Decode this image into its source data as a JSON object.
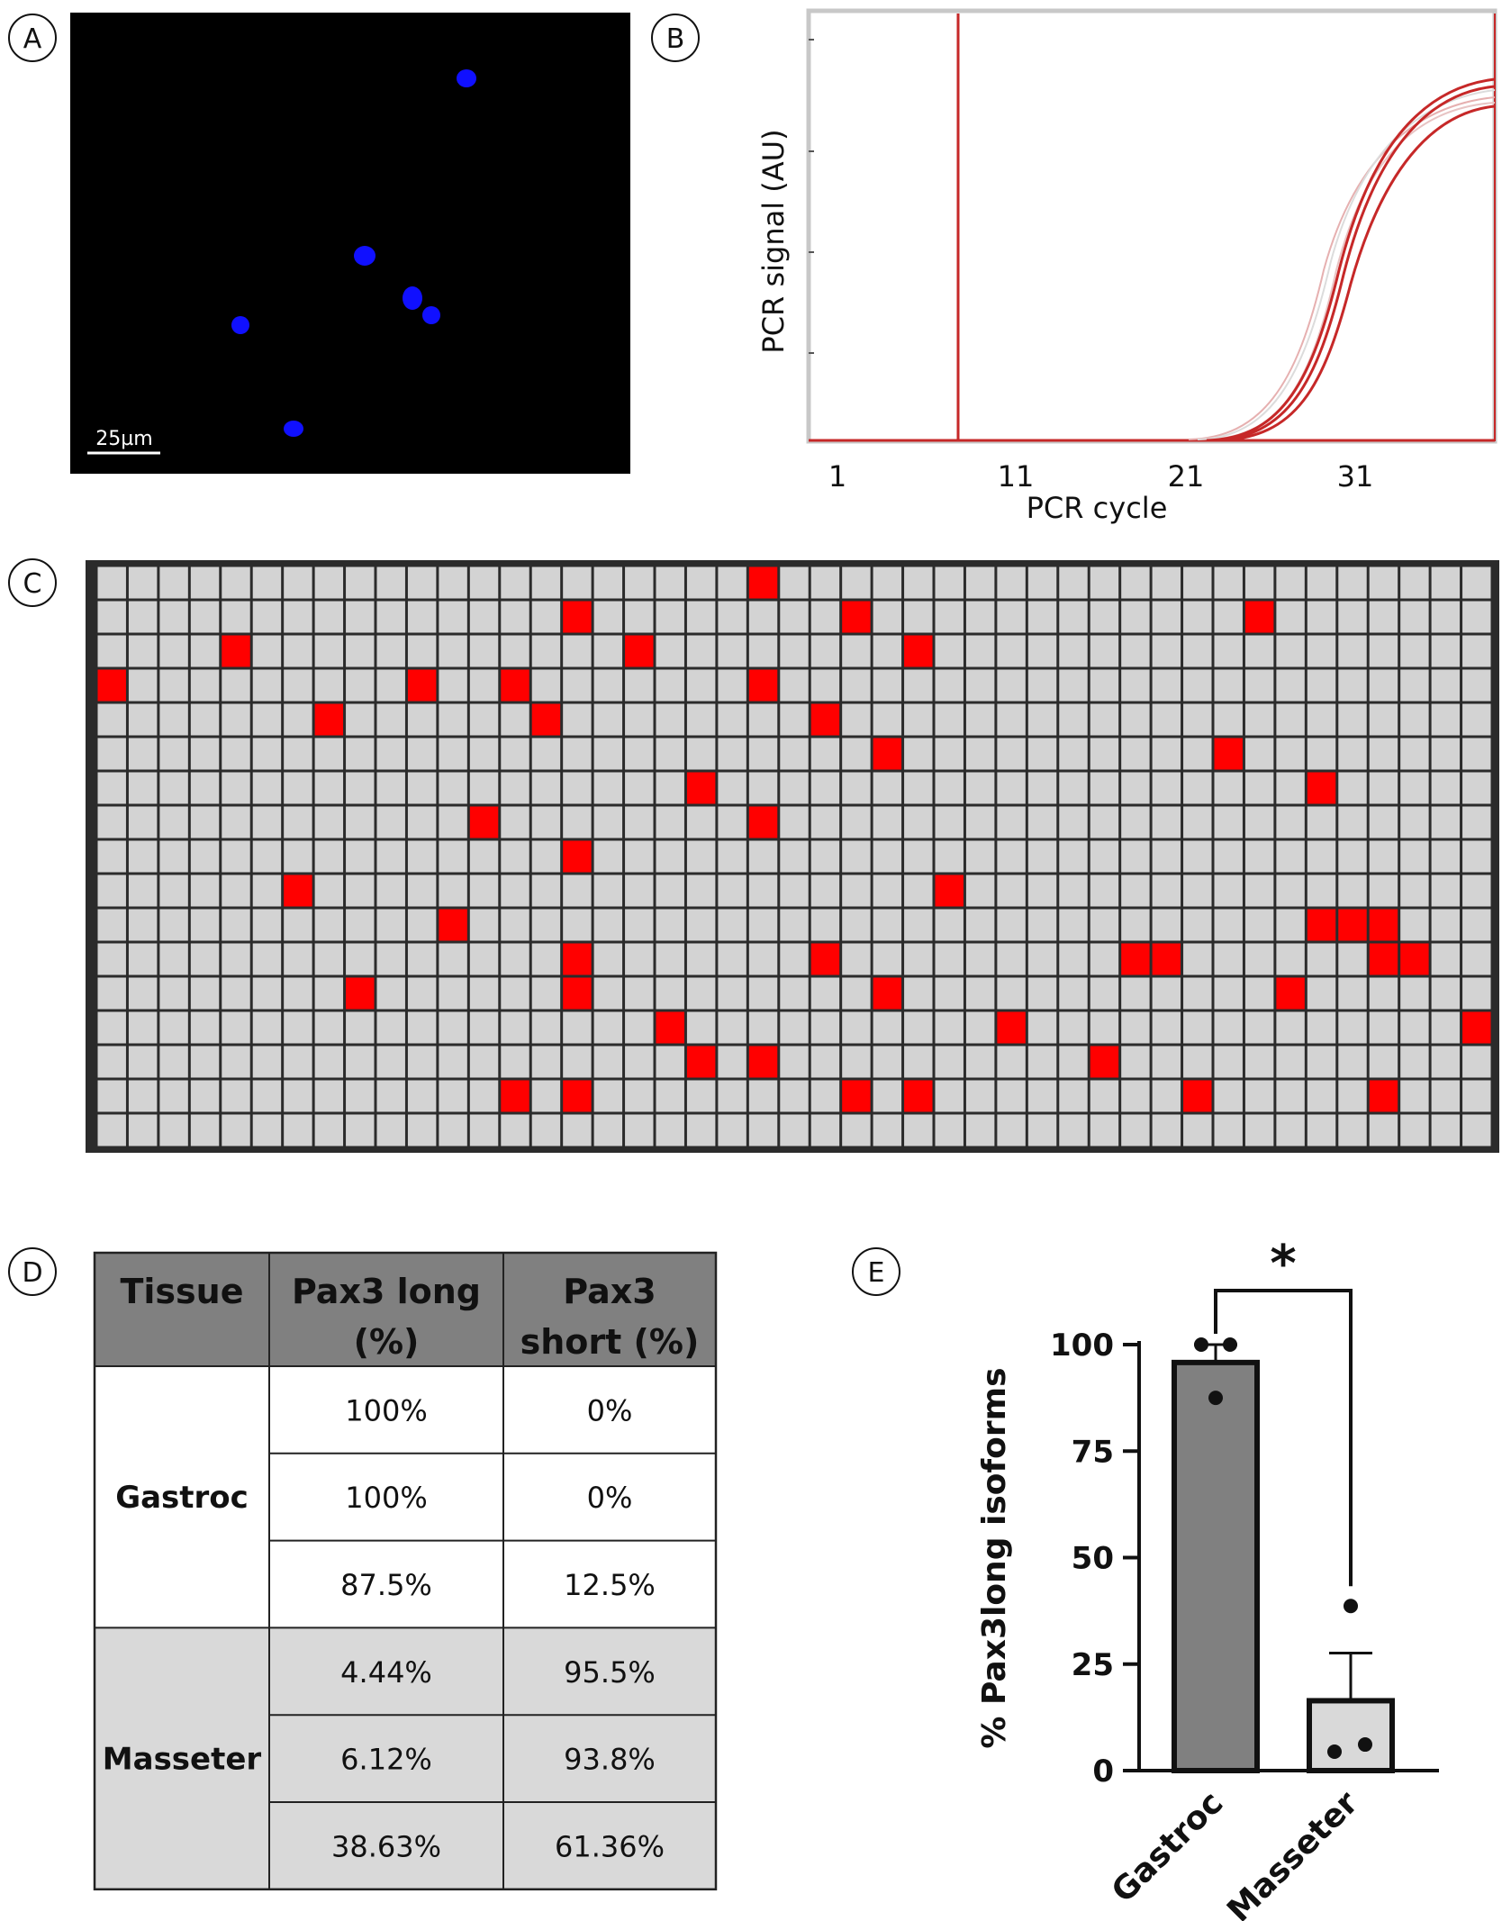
{
  "panels": {
    "A": "A",
    "B": "B",
    "C": "C",
    "D": "D",
    "E": "E"
  },
  "panel_a": {
    "scale_label": "25µm",
    "background": "#000000",
    "nucleus_color": "#1010ff"
  },
  "panel_b": {
    "ylabel": "PCR signal (AU)",
    "xlabel": "PCR cycle",
    "xticks": [
      "1",
      "11",
      "21",
      "31"
    ],
    "line_color": "#c62828"
  },
  "panel_c": {
    "rows": 17,
    "cols": 45,
    "well_color": "#d3d3d3",
    "positive_color": "#ff0000",
    "positive_wells": [
      [
        0,
        21
      ],
      [
        1,
        15
      ],
      [
        1,
        24
      ],
      [
        1,
        37
      ],
      [
        2,
        4
      ],
      [
        2,
        17
      ],
      [
        2,
        26
      ],
      [
        3,
        0
      ],
      [
        3,
        10
      ],
      [
        3,
        13
      ],
      [
        3,
        21
      ],
      [
        4,
        7
      ],
      [
        4,
        14
      ],
      [
        4,
        23
      ],
      [
        5,
        25
      ],
      [
        5,
        36
      ],
      [
        6,
        19
      ],
      [
        6,
        39
      ],
      [
        7,
        12
      ],
      [
        7,
        21
      ],
      [
        8,
        15
      ],
      [
        9,
        6
      ],
      [
        9,
        27
      ],
      [
        10,
        11
      ],
      [
        10,
        39
      ],
      [
        10,
        40
      ],
      [
        10,
        41
      ],
      [
        11,
        15
      ],
      [
        11,
        23
      ],
      [
        11,
        33
      ],
      [
        11,
        34
      ],
      [
        11,
        41
      ],
      [
        11,
        42
      ],
      [
        12,
        8
      ],
      [
        12,
        15
      ],
      [
        12,
        25
      ],
      [
        12,
        38
      ],
      [
        13,
        18
      ],
      [
        13,
        29
      ],
      [
        13,
        44
      ],
      [
        14,
        19
      ],
      [
        14,
        21
      ],
      [
        14,
        32
      ],
      [
        15,
        13
      ],
      [
        15,
        15
      ],
      [
        15,
        24
      ],
      [
        15,
        26
      ],
      [
        15,
        35
      ],
      [
        15,
        41
      ]
    ]
  },
  "panel_d": {
    "headers": [
      [
        "Tissue"
      ],
      [
        "Pax3 long",
        "(%)"
      ],
      [
        "Pax3",
        "short (%)"
      ]
    ],
    "groups": [
      {
        "tissue": "Gastroc",
        "rows": [
          [
            "100%",
            "0%"
          ],
          [
            "100%",
            "0%"
          ],
          [
            "87.5%",
            "12.5%"
          ]
        ]
      },
      {
        "tissue": "Masseter",
        "rows": [
          [
            "4.44%",
            "95.5%"
          ],
          [
            "6.12%",
            "93.8%"
          ],
          [
            "38.63%",
            "61.36%"
          ]
        ]
      }
    ],
    "header_color": "#808080",
    "masseter_color": "#d9d9d9"
  },
  "chart_data": {
    "type": "bar",
    "categories": [
      "Gastroc",
      "Masseter"
    ],
    "values": [
      95.8,
      16.4
    ],
    "errors": [
      4.2,
      11.2
    ],
    "points": [
      [
        100,
        100,
        87.5
      ],
      [
        4.44,
        6.12,
        38.63
      ]
    ],
    "ylabel": "% Pax3long isoforms",
    "ylim": [
      0,
      100
    ],
    "yticks": [
      "0",
      "25",
      "50",
      "75",
      "100"
    ],
    "significance": "*",
    "bar_colors": [
      "#808080",
      "#d9d9d9"
    ]
  }
}
